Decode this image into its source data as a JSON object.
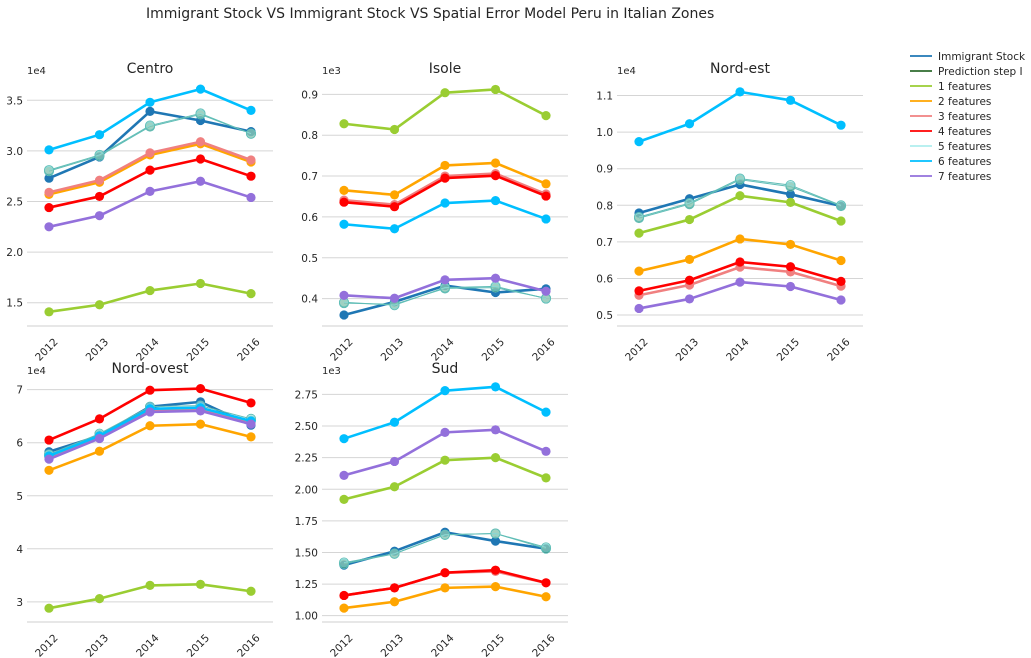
{
  "figure_title": "Immigrant Stock VS Immigrant Stock VS Spatial Error Model Peru in Italian Zones",
  "colors": {
    "Immigrant Stock": "#1f77b4",
    "Prediction step I": "#2e6b2e",
    "1 features": "#9acd32",
    "2 features": "#ffa500",
    "3 features": "#f08080",
    "4 features": "#ff0000",
    "5 features": "#afeeee",
    "6 features": "#00bfff",
    "7 features": "#9370db"
  },
  "legend": {
    "entries": [
      "Immigrant Stock",
      "Prediction step I",
      "1 features",
      "2 features",
      "3 features",
      "4 features",
      "5 features",
      "6 features",
      "7 features"
    ],
    "placement": "right"
  },
  "chart_data": [
    {
      "type": "line",
      "title": "Centro",
      "multiplier": "1e4",
      "x": [
        "2012",
        "2013",
        "2014",
        "2015",
        "2016"
      ],
      "yticks": [
        "1.5",
        "2.0",
        "2.5",
        "3.0",
        "3.5"
      ],
      "ylim": [
        1.27,
        3.72
      ],
      "grid": "y",
      "series": [
        {
          "name": "Immigrant Stock",
          "values": [
            2.73,
            2.94,
            3.39,
            3.3,
            3.19
          ]
        },
        {
          "name": "Prediction step I",
          "values": [
            2.8,
            2.95,
            3.24,
            3.36,
            3.17
          ]
        },
        {
          "name": "1 features",
          "values": [
            1.41,
            1.48,
            1.62,
            1.69,
            1.59
          ]
        },
        {
          "name": "2 features",
          "values": [
            2.57,
            2.69,
            2.96,
            3.07,
            2.89
          ]
        },
        {
          "name": "3 features",
          "values": [
            2.59,
            2.71,
            2.98,
            3.09,
            2.91
          ]
        },
        {
          "name": "4 features",
          "values": [
            2.44,
            2.55,
            2.81,
            2.92,
            2.75
          ]
        },
        {
          "name": "5 features",
          "values": [
            2.81,
            2.96,
            3.25,
            3.37,
            3.17
          ]
        },
        {
          "name": "6 features",
          "values": [
            3.01,
            3.16,
            3.48,
            3.61,
            3.4
          ]
        },
        {
          "name": "7 features",
          "values": [
            2.25,
            2.36,
            2.6,
            2.7,
            2.54
          ]
        }
      ]
    },
    {
      "type": "line",
      "title": "Isole",
      "multiplier": "1e3",
      "x": [
        "2012",
        "2013",
        "2014",
        "2015",
        "2016"
      ],
      "yticks": [
        "0.4",
        "0.5",
        "0.6",
        "0.7",
        "0.8",
        "0.9"
      ],
      "ylim": [
        0.333,
        0.94
      ],
      "grid": "y",
      "series": [
        {
          "name": "Immigrant Stock",
          "values": [
            0.36,
            0.392,
            0.432,
            0.415,
            0.424
          ]
        },
        {
          "name": "Prediction step I",
          "values": [
            0.389,
            0.386,
            0.425,
            0.427,
            0.401
          ]
        },
        {
          "name": "1 features",
          "values": [
            0.828,
            0.814,
            0.904,
            0.912,
            0.848
          ]
        },
        {
          "name": "2 features",
          "values": [
            0.665,
            0.654,
            0.726,
            0.732,
            0.681
          ]
        },
        {
          "name": "3 features",
          "values": [
            0.641,
            0.63,
            0.7,
            0.706,
            0.656
          ]
        },
        {
          "name": "4 features",
          "values": [
            0.636,
            0.625,
            0.695,
            0.701,
            0.651
          ]
        },
        {
          "name": "5 features",
          "values": [
            0.391,
            0.384,
            0.427,
            0.43,
            0.4
          ]
        },
        {
          "name": "6 features",
          "values": [
            0.582,
            0.571,
            0.634,
            0.64,
            0.595
          ]
        },
        {
          "name": "7 features",
          "values": [
            0.408,
            0.401,
            0.446,
            0.45,
            0.418
          ]
        }
      ]
    },
    {
      "type": "line",
      "title": "Nord-est",
      "multiplier": "1e4",
      "x": [
        "2012",
        "2013",
        "2014",
        "2015",
        "2016"
      ],
      "yticks": [
        "0.5",
        "0.6",
        "0.7",
        "0.8",
        "0.9",
        "1.0",
        "1.1"
      ],
      "ylim": [
        0.47,
        1.148
      ],
      "grid": "y",
      "series": [
        {
          "name": "Immigrant Stock",
          "values": [
            0.779,
            0.818,
            0.857,
            0.83,
            0.798
          ]
        },
        {
          "name": "Prediction step I",
          "values": [
            0.765,
            0.803,
            0.87,
            0.851,
            0.798
          ]
        },
        {
          "name": "1 features",
          "values": [
            0.724,
            0.761,
            0.826,
            0.808,
            0.757
          ]
        },
        {
          "name": "2 features",
          "values": [
            0.62,
            0.652,
            0.708,
            0.693,
            0.649
          ]
        },
        {
          "name": "3 features",
          "values": [
            0.554,
            0.582,
            0.631,
            0.618,
            0.579
          ]
        },
        {
          "name": "4 features",
          "values": [
            0.566,
            0.595,
            0.645,
            0.632,
            0.592
          ]
        },
        {
          "name": "5 features",
          "values": [
            0.768,
            0.806,
            0.873,
            0.855,
            0.8
          ]
        },
        {
          "name": "6 features",
          "values": [
            0.974,
            1.023,
            1.11,
            1.087,
            1.019
          ]
        },
        {
          "name": "7 features",
          "values": [
            0.518,
            0.544,
            0.59,
            0.578,
            0.541
          ]
        }
      ]
    },
    {
      "type": "line",
      "title": "Nord-ovest",
      "multiplier": "1e4",
      "x": [
        "2012",
        "2013",
        "2014",
        "2015",
        "2016"
      ],
      "yticks": [
        "3",
        "4",
        "5",
        "6",
        "7"
      ],
      "ylim": [
        2.62,
        7.22
      ],
      "grid": "y",
      "series": [
        {
          "name": "Immigrant Stock",
          "values": [
            5.83,
            6.13,
            6.68,
            6.77,
            6.33
          ]
        },
        {
          "name": "Prediction step I",
          "values": [
            5.76,
            6.15,
            6.64,
            6.66,
            6.42
          ]
        },
        {
          "name": "1 features",
          "values": [
            2.88,
            3.06,
            3.31,
            3.33,
            3.2
          ]
        },
        {
          "name": "2 features",
          "values": [
            5.48,
            5.84,
            6.32,
            6.35,
            6.11
          ]
        },
        {
          "name": "3 features",
          "values": [
            5.72,
            6.1,
            6.6,
            6.62,
            6.38
          ]
        },
        {
          "name": "4 features",
          "values": [
            6.05,
            6.45,
            6.99,
            7.02,
            6.75
          ]
        },
        {
          "name": "5 features",
          "values": [
            5.78,
            6.17,
            6.68,
            6.7,
            6.45
          ]
        },
        {
          "name": "6 features",
          "values": [
            5.75,
            6.13,
            6.64,
            6.66,
            6.41
          ]
        },
        {
          "name": "7 features",
          "values": [
            5.69,
            6.08,
            6.58,
            6.6,
            6.35
          ]
        }
      ]
    },
    {
      "type": "line",
      "title": "Sud",
      "multiplier": "1e3",
      "x": [
        "2012",
        "2013",
        "2014",
        "2015",
        "2016"
      ],
      "yticks": [
        "1.00",
        "1.25",
        "1.50",
        "1.75",
        "2.00",
        "2.25",
        "2.50",
        "2.75"
      ],
      "ylim": [
        0.95,
        2.88
      ],
      "grid": "y",
      "series": [
        {
          "name": "Immigrant Stock",
          "values": [
            1.4,
            1.51,
            1.66,
            1.59,
            1.53
          ]
        },
        {
          "name": "Prediction step I",
          "values": [
            1.41,
            1.49,
            1.64,
            1.65,
            1.53
          ]
        },
        {
          "name": "1 features",
          "values": [
            1.92,
            2.02,
            2.23,
            2.25,
            2.09
          ]
        },
        {
          "name": "2 features",
          "values": [
            1.06,
            1.11,
            1.22,
            1.23,
            1.15
          ]
        },
        {
          "name": "3 features",
          "values": [
            1.16,
            1.22,
            1.34,
            1.35,
            1.26
          ]
        },
        {
          "name": "4 features",
          "values": [
            1.16,
            1.22,
            1.34,
            1.36,
            1.26
          ]
        },
        {
          "name": "5 features",
          "values": [
            1.42,
            1.49,
            1.64,
            1.65,
            1.54
          ]
        },
        {
          "name": "6 features",
          "values": [
            2.4,
            2.53,
            2.78,
            2.81,
            2.61
          ]
        },
        {
          "name": "7 features",
          "values": [
            2.11,
            2.22,
            2.45,
            2.47,
            2.3
          ]
        }
      ]
    }
  ]
}
